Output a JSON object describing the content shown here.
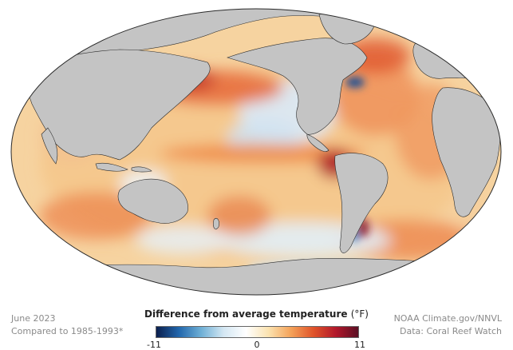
{
  "map": {
    "colors": {
      "land": "#c4c4c4",
      "ocean_base": "#f6d3a0",
      "border": "#222222"
    }
  },
  "legend": {
    "title": "Difference from average temperature",
    "unit": "(°F)",
    "min_label": "-11",
    "mid_label": "0",
    "max_label": "11",
    "scale_min": -11,
    "scale_max": 11,
    "gradient_colors": [
      "#0b1f4d",
      "#2166ac",
      "#6fb0d6",
      "#d4e7f3",
      "#ffffff",
      "#fbe3b0",
      "#f4a259",
      "#e0542a",
      "#b2182b",
      "#5a0f24"
    ]
  },
  "footer": {
    "date": "June 2023",
    "comparison": "Compared to 1985-1993*",
    "credit": "NOAA Climate.gov/NNVL",
    "source": "Data: Coral Reef Watch"
  }
}
